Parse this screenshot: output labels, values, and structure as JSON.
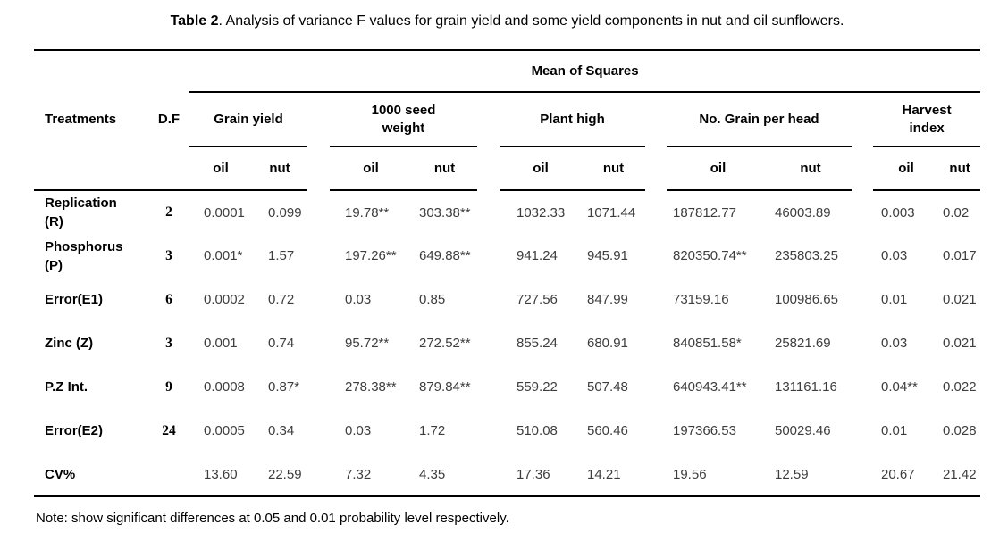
{
  "title": {
    "bold": "Table 2",
    "rest": ". Analysis of variance F values for grain yield and some yield components in nut and oil sunflowers."
  },
  "table": {
    "mean_of_squares": "Mean of Squares",
    "col_treatments": "Treatments",
    "col_df": "D.F",
    "groups": [
      {
        "label": "Grain yield",
        "sub": [
          "oil",
          "nut"
        ]
      },
      {
        "label": "1000 seed\nweight",
        "sub": [
          "oil",
          "nut"
        ]
      },
      {
        "label": "Plant high",
        "sub": [
          "oil",
          "nut"
        ]
      },
      {
        "label": "No. Grain per head",
        "sub": [
          "oil",
          "nut"
        ]
      },
      {
        "label": "Harvest\nindex",
        "sub": [
          "oil",
          "nut"
        ]
      }
    ],
    "rows": [
      {
        "treatment": "Replication\n(R)",
        "df": "2",
        "values": [
          "0.0001",
          "0.099",
          "19.78**",
          "303.38**",
          "1032.33",
          "1071.44",
          "187812.77",
          "46003.89",
          "0.003",
          "0.02"
        ]
      },
      {
        "treatment": "Phosphorus\n(P)",
        "df": "3",
        "values": [
          "0.001*",
          "1.57",
          "197.26**",
          "649.88**",
          "941.24",
          "945.91",
          "820350.74**",
          "235803.25",
          "0.03",
          "0.017"
        ]
      },
      {
        "treatment": "Error(E1)",
        "df": "6",
        "values": [
          "0.0002",
          "0.72",
          "0.03",
          "0.85",
          "727.56",
          "847.99",
          "73159.16",
          "100986.65",
          "0.01",
          "0.021"
        ]
      },
      {
        "treatment": "Zinc (Z)",
        "df": "3",
        "values": [
          "0.001",
          "0.74",
          "95.72**",
          "272.52**",
          "855.24",
          "680.91",
          "840851.58*",
          "25821.69",
          "0.03",
          "0.021"
        ]
      },
      {
        "treatment": "P.Z Int.",
        "df": "9",
        "values": [
          "0.0008",
          "0.87*",
          "278.38**",
          "879.84**",
          "559.22",
          "507.48",
          "640943.41**",
          "131161.16",
          "0.04**",
          "0.022"
        ]
      },
      {
        "treatment": "Error(E2)",
        "df": "24",
        "values": [
          "0.0005",
          "0.34",
          "0.03",
          "1.72",
          "510.08",
          "560.46",
          "197366.53",
          "50029.46",
          "0.01",
          "0.028"
        ]
      },
      {
        "treatment": "CV%",
        "df": "",
        "values": [
          "13.60",
          "22.59",
          "7.32",
          "4.35",
          "17.36",
          "14.21",
          "19.56",
          "12.59",
          "20.67",
          "21.42"
        ]
      }
    ]
  },
  "note": "Note: show significant differences at 0.05 and 0.01 probability level respectively.",
  "colors": {
    "text": "#000000",
    "data_text": "#3d3d3d",
    "rule": "#000000",
    "background": "#ffffff"
  }
}
